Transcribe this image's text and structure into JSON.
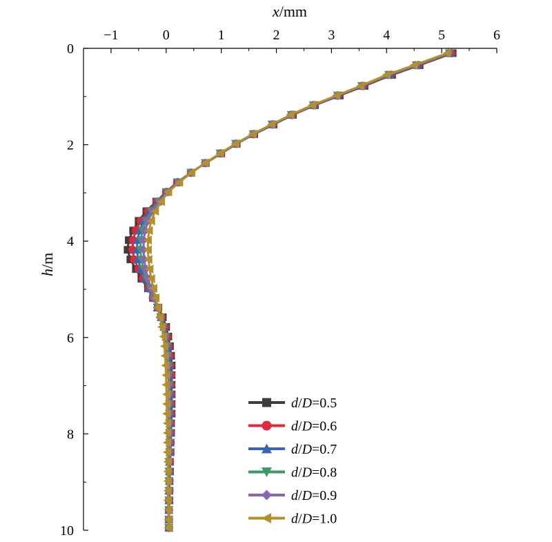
{
  "chart_data": {
    "type": "line",
    "title": "",
    "xlabel": {
      "var": "x",
      "unit": "/mm"
    },
    "ylabel": {
      "var": "h",
      "unit": "/m"
    },
    "xlim": [
      -1.5,
      6
    ],
    "ylim": [
      0,
      10
    ],
    "y_inverted": true,
    "x_axis_position": "top",
    "x_ticks": [
      "−1",
      "0",
      "1",
      "2",
      "3",
      "4",
      "5",
      "6"
    ],
    "x_tick_values": [
      -1,
      0,
      1,
      2,
      3,
      4,
      5,
      6
    ],
    "y_ticks": [
      "0",
      "2",
      "4",
      "6",
      "8",
      "10"
    ],
    "y_tick_values": [
      0,
      2,
      4,
      6,
      8,
      10
    ],
    "grid": false,
    "legend_position": "bottom-right",
    "h": [
      0.1,
      0.35,
      0.55,
      0.78,
      0.98,
      1.18,
      1.38,
      1.58,
      1.78,
      1.98,
      2.18,
      2.38,
      2.58,
      2.78,
      2.98,
      3.18,
      3.38,
      3.58,
      3.78,
      3.98,
      4.18,
      4.38,
      4.58,
      4.78,
      4.98,
      5.18,
      5.38,
      5.58,
      5.78,
      5.98,
      6.18,
      6.38,
      6.58,
      6.78,
      6.98,
      7.18,
      7.38,
      7.58,
      7.78,
      7.98,
      8.18,
      8.38,
      8.58,
      8.78,
      8.98,
      9.18,
      9.38,
      9.58,
      9.78,
      9.95
    ],
    "series": [
      {
        "name": "d/D=0.5",
        "prefix": "d",
        "sep": "/",
        "mid": "D",
        "suffix": "=0.5",
        "color": "#3d3d3d",
        "marker": "square",
        "x": [
          5.2,
          4.6,
          4.1,
          3.6,
          3.15,
          2.7,
          2.3,
          1.95,
          1.6,
          1.28,
          1.0,
          0.72,
          0.45,
          0.2,
          0.0,
          -0.18,
          -0.36,
          -0.5,
          -0.6,
          -0.68,
          -0.7,
          -0.65,
          -0.55,
          -0.45,
          -0.33,
          -0.24,
          -0.14,
          -0.06,
          0.0,
          0.04,
          0.07,
          0.09,
          0.1,
          0.1,
          0.1,
          0.1,
          0.1,
          0.1,
          0.09,
          0.09,
          0.08,
          0.08,
          0.07,
          0.07,
          0.06,
          0.06,
          0.06,
          0.05,
          0.05,
          0.05
        ]
      },
      {
        "name": "d/D=0.6",
        "prefix": "d",
        "sep": "/",
        "mid": "D",
        "suffix": "=0.6",
        "color": "#dc2a3c",
        "marker": "circle",
        "x": [
          5.18,
          4.58,
          4.08,
          3.58,
          3.13,
          2.69,
          2.29,
          1.94,
          1.59,
          1.27,
          0.99,
          0.71,
          0.45,
          0.2,
          0.0,
          -0.17,
          -0.33,
          -0.46,
          -0.55,
          -0.6,
          -0.61,
          -0.58,
          -0.5,
          -0.42,
          -0.32,
          -0.24,
          -0.15,
          -0.08,
          -0.02,
          0.02,
          0.05,
          0.07,
          0.08,
          0.09,
          0.09,
          0.09,
          0.09,
          0.09,
          0.08,
          0.08,
          0.08,
          0.07,
          0.07,
          0.06,
          0.06,
          0.06,
          0.05,
          0.05,
          0.05,
          0.05
        ]
      },
      {
        "name": "d/D=0.7",
        "prefix": "d",
        "sep": "/",
        "mid": "D",
        "suffix": "=0.7",
        "color": "#3c64b4",
        "marker": "triangle-up",
        "x": [
          5.16,
          4.56,
          4.06,
          3.56,
          3.12,
          2.68,
          2.28,
          1.93,
          1.59,
          1.27,
          0.99,
          0.71,
          0.45,
          0.21,
          0.01,
          -0.15,
          -0.3,
          -0.41,
          -0.48,
          -0.52,
          -0.53,
          -0.51,
          -0.46,
          -0.39,
          -0.31,
          -0.23,
          -0.16,
          -0.09,
          -0.04,
          0.0,
          0.03,
          0.05,
          0.06,
          0.07,
          0.07,
          0.08,
          0.08,
          0.08,
          0.07,
          0.07,
          0.07,
          0.07,
          0.06,
          0.06,
          0.06,
          0.05,
          0.05,
          0.05,
          0.05,
          0.05
        ]
      },
      {
        "name": "d/D=0.8",
        "prefix": "d",
        "sep": "/",
        "mid": "D",
        "suffix": "=0.8",
        "color": "#3c9a64",
        "marker": "triangle-down",
        "x": [
          5.14,
          4.54,
          4.04,
          3.55,
          3.11,
          2.67,
          2.27,
          1.92,
          1.58,
          1.26,
          0.98,
          0.71,
          0.45,
          0.22,
          0.02,
          -0.13,
          -0.27,
          -0.37,
          -0.43,
          -0.46,
          -0.47,
          -0.45,
          -0.41,
          -0.36,
          -0.29,
          -0.23,
          -0.16,
          -0.1,
          -0.05,
          -0.01,
          0.02,
          0.03,
          0.05,
          0.05,
          0.06,
          0.06,
          0.06,
          0.06,
          0.06,
          0.06,
          0.06,
          0.06,
          0.05,
          0.05,
          0.05,
          0.05,
          0.05,
          0.05,
          0.05,
          0.05
        ]
      },
      {
        "name": "d/D=0.9",
        "prefix": "d",
        "sep": "/",
        "mid": "D",
        "suffix": "=0.9",
        "color": "#8a64b8",
        "marker": "diamond",
        "x": [
          5.12,
          4.52,
          4.02,
          3.54,
          3.1,
          2.66,
          2.26,
          1.92,
          1.58,
          1.26,
          0.98,
          0.71,
          0.46,
          0.23,
          0.03,
          -0.11,
          -0.24,
          -0.33,
          -0.38,
          -0.41,
          -0.41,
          -0.4,
          -0.37,
          -0.33,
          -0.27,
          -0.22,
          -0.16,
          -0.11,
          -0.06,
          -0.02,
          0.0,
          0.02,
          0.03,
          0.04,
          0.05,
          0.05,
          0.05,
          0.05,
          0.05,
          0.05,
          0.05,
          0.05,
          0.05,
          0.05,
          0.05,
          0.05,
          0.05,
          0.05,
          0.05,
          0.05
        ]
      },
      {
        "name": "d/D=1.0",
        "prefix": "d",
        "sep": "/",
        "mid": "D",
        "suffix": "=1.0",
        "color": "#b4902a",
        "marker": "triangle-left",
        "x": [
          5.1,
          4.5,
          4.0,
          3.53,
          3.09,
          2.65,
          2.26,
          1.91,
          1.57,
          1.26,
          0.98,
          0.71,
          0.46,
          0.24,
          0.04,
          -0.09,
          -0.2,
          -0.27,
          -0.31,
          -0.33,
          -0.33,
          -0.32,
          -0.3,
          -0.27,
          -0.23,
          -0.19,
          -0.15,
          -0.11,
          -0.08,
          -0.05,
          -0.03,
          -0.02,
          -0.01,
          0.0,
          0.0,
          0.01,
          0.01,
          0.01,
          0.02,
          0.02,
          0.02,
          0.02,
          0.03,
          0.03,
          0.03,
          0.03,
          0.03,
          0.04,
          0.04,
          0.04
        ]
      }
    ]
  }
}
